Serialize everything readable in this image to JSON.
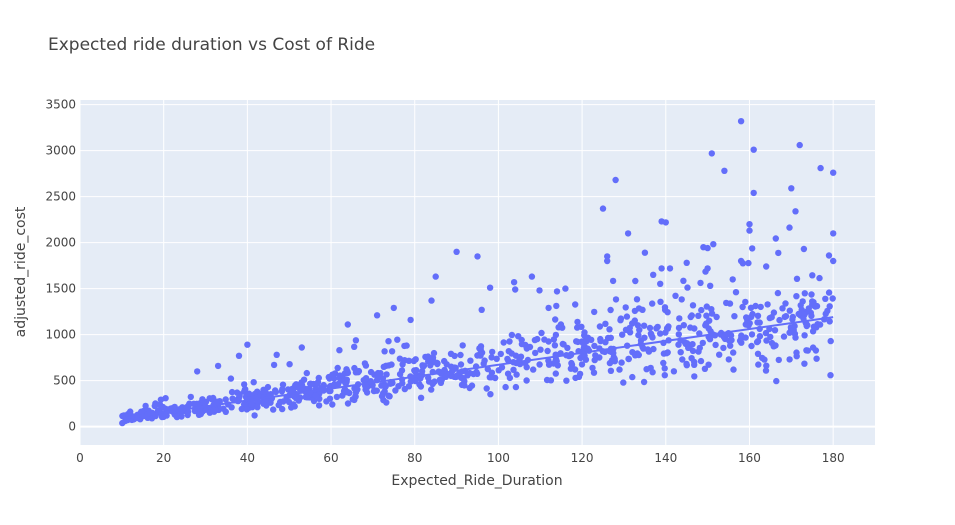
{
  "chart_data": {
    "type": "scatter",
    "title": "Expected ride duration vs Cost of Ride",
    "xlabel": "Expected_Ride_Duration",
    "ylabel": "adjusted_ride_cost",
    "xlim": [
      0,
      190
    ],
    "ylim": [
      -200,
      3550
    ],
    "x_ticks": [
      0,
      20,
      40,
      60,
      80,
      100,
      120,
      140,
      160,
      180
    ],
    "y_ticks": [
      0,
      500,
      1000,
      1500,
      2000,
      2500,
      3000,
      3500
    ],
    "grid": true,
    "legend": false,
    "colors": {
      "background": "#e5ecf6",
      "marker": "#636efa",
      "trendline": "#636efa",
      "grid": "#ffffff"
    },
    "trendline": {
      "x": [
        10,
        180
      ],
      "y": [
        90,
        1190
      ]
    },
    "outliers": [
      {
        "x": 158,
        "y": 3320
      },
      {
        "x": 172,
        "y": 3060
      },
      {
        "x": 161,
        "y": 3010
      },
      {
        "x": 151,
        "y": 2970
      },
      {
        "x": 177,
        "y": 2810
      },
      {
        "x": 180,
        "y": 2760
      },
      {
        "x": 154,
        "y": 2780
      },
      {
        "x": 128,
        "y": 2680
      },
      {
        "x": 170,
        "y": 2590
      },
      {
        "x": 161,
        "y": 2540
      },
      {
        "x": 125,
        "y": 2370
      },
      {
        "x": 171,
        "y": 2340
      },
      {
        "x": 139,
        "y": 2230
      },
      {
        "x": 140,
        "y": 2220
      },
      {
        "x": 160,
        "y": 2200
      },
      {
        "x": 160,
        "y": 2130
      },
      {
        "x": 131,
        "y": 2100
      },
      {
        "x": 180,
        "y": 2100
      },
      {
        "x": 149,
        "y": 1950
      },
      {
        "x": 150,
        "y": 1940
      },
      {
        "x": 173,
        "y": 1930
      },
      {
        "x": 90,
        "y": 1900
      },
      {
        "x": 135,
        "y": 1890
      },
      {
        "x": 179,
        "y": 1860
      },
      {
        "x": 95,
        "y": 1850
      },
      {
        "x": 126,
        "y": 1850
      },
      {
        "x": 180,
        "y": 1800
      },
      {
        "x": 158,
        "y": 1800
      },
      {
        "x": 126,
        "y": 1800
      },
      {
        "x": 145,
        "y": 1780
      },
      {
        "x": 150,
        "y": 1720
      },
      {
        "x": 139,
        "y": 1720
      },
      {
        "x": 141,
        "y": 1720
      },
      {
        "x": 164,
        "y": 1740
      },
      {
        "x": 108,
        "y": 1630
      },
      {
        "x": 85,
        "y": 1630
      },
      {
        "x": 137,
        "y": 1650
      },
      {
        "x": 156,
        "y": 1600
      },
      {
        "x": 98,
        "y": 1510
      },
      {
        "x": 104,
        "y": 1490
      },
      {
        "x": 114,
        "y": 1470
      },
      {
        "x": 116,
        "y": 1500
      },
      {
        "x": 84,
        "y": 1370
      },
      {
        "x": 75,
        "y": 1290
      },
      {
        "x": 112,
        "y": 1290
      },
      {
        "x": 96,
        "y": 1270
      },
      {
        "x": 71,
        "y": 1210
      },
      {
        "x": 64,
        "y": 1110
      },
      {
        "x": 79,
        "y": 1160
      },
      {
        "x": 40,
        "y": 890
      },
      {
        "x": 38,
        "y": 770
      },
      {
        "x": 33,
        "y": 660
      },
      {
        "x": 28,
        "y": 600
      },
      {
        "x": 62,
        "y": 830
      },
      {
        "x": 47,
        "y": 780
      },
      {
        "x": 53,
        "y": 860
      }
    ],
    "generated_points": {
      "count": 900,
      "x_range": [
        10,
        180
      ],
      "y_mean_slope": 6.5,
      "y_mean_intercept": 25
    }
  }
}
